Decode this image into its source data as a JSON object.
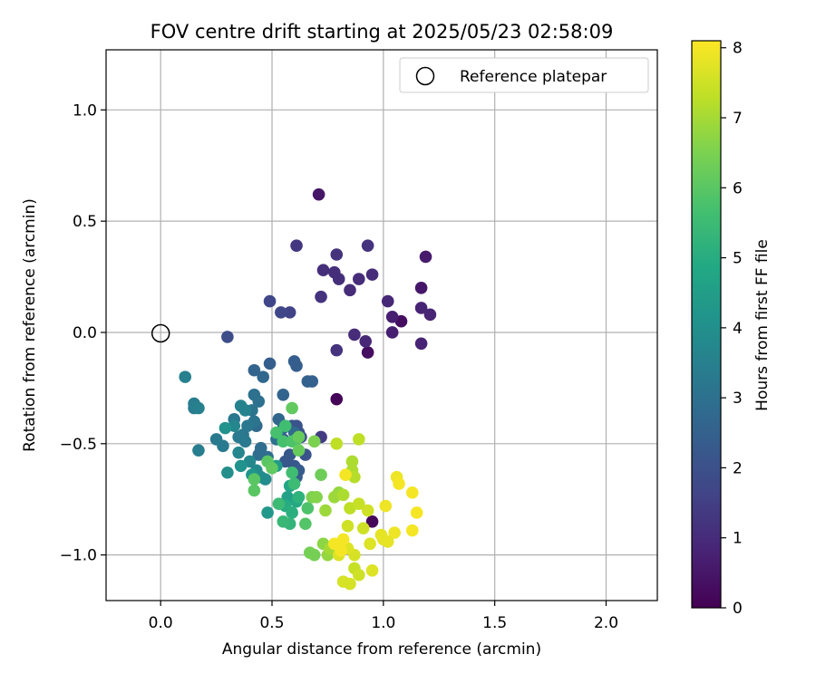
{
  "chart_data": {
    "type": "scatter",
    "title": "FOV centre drift starting at 2025/05/23 02:58:09",
    "xlabel": "Angular distance from reference (arcmin)",
    "ylabel": "Rotation from reference (arcmin)",
    "xlim": [
      -0.245,
      2.23
    ],
    "ylim": [
      -1.205,
      1.27
    ],
    "xticks": [
      0.0,
      0.5,
      1.0,
      1.5,
      2.0
    ],
    "xtick_labels": [
      "0.0",
      "0.5",
      "1.0",
      "1.5",
      "2.0"
    ],
    "yticks": [
      1.0,
      0.5,
      0.0,
      -0.5,
      -1.0
    ],
    "ytick_labels": [
      "1.0",
      "0.5",
      "0.0",
      "−0.5",
      "−1.0"
    ],
    "grid": true,
    "legend": {
      "position": "top-right",
      "entries": [
        "Reference platepar"
      ]
    },
    "reference_point": {
      "x": 0.0,
      "y": 0.0,
      "label": "Reference platepar"
    },
    "colorbar": {
      "label": "Hours from first FF file",
      "colormap": "viridis",
      "range": [
        0,
        8.1
      ],
      "ticks": [
        0,
        1,
        2,
        3,
        4,
        5,
        6,
        7,
        8
      ],
      "tick_labels": [
        "0",
        "1",
        "2",
        "3",
        "4",
        "5",
        "6",
        "7",
        "8"
      ]
    },
    "points": [
      [
        0.79,
        -0.3,
        0.1
      ],
      [
        0.95,
        -0.85,
        0.15
      ],
      [
        0.93,
        -0.09,
        0.3
      ],
      [
        1.08,
        0.05,
        0.3
      ],
      [
        0.71,
        0.62,
        0.5
      ],
      [
        1.17,
        0.2,
        0.5
      ],
      [
        1.19,
        0.34,
        0.6
      ],
      [
        1.04,
        0.07,
        0.7
      ],
      [
        1.04,
        0.0,
        0.7
      ],
      [
        1.21,
        0.08,
        0.8
      ],
      [
        1.17,
        0.11,
        0.8
      ],
      [
        1.17,
        -0.05,
        0.8
      ],
      [
        1.02,
        0.14,
        0.9
      ],
      [
        0.92,
        -0.04,
        0.9
      ],
      [
        0.87,
        -0.01,
        1.0
      ],
      [
        0.85,
        0.19,
        1.0
      ],
      [
        0.95,
        0.26,
        1.0
      ],
      [
        0.89,
        0.24,
        1.0
      ],
      [
        0.78,
        0.27,
        1.1
      ],
      [
        0.8,
        0.24,
        1.1
      ],
      [
        0.73,
        0.28,
        1.1
      ],
      [
        0.72,
        0.16,
        1.2
      ],
      [
        0.79,
        -0.08,
        1.2
      ],
      [
        0.93,
        0.39,
        1.2
      ],
      [
        0.79,
        0.35,
        1.2
      ],
      [
        0.61,
        0.39,
        1.3
      ],
      [
        0.72,
        -0.47,
        1.4
      ],
      [
        0.58,
        0.09,
        1.6
      ],
      [
        0.54,
        0.09,
        1.7
      ],
      [
        0.49,
        0.14,
        1.7
      ],
      [
        0.3,
        -0.02,
        1.9
      ],
      [
        0.63,
        -0.47,
        2.0
      ],
      [
        0.62,
        -0.45,
        2.1
      ],
      [
        0.61,
        -0.42,
        2.1
      ],
      [
        0.59,
        -0.42,
        2.1
      ],
      [
        0.65,
        -0.55,
        2.1
      ],
      [
        0.56,
        -0.58,
        2.2
      ],
      [
        0.6,
        -0.6,
        2.2
      ],
      [
        0.58,
        -0.55,
        2.2
      ],
      [
        0.55,
        -0.48,
        2.3
      ],
      [
        0.62,
        -0.62,
        2.3
      ],
      [
        0.61,
        -0.65,
        2.3
      ],
      [
        0.49,
        -0.14,
        2.4
      ],
      [
        0.6,
        -0.13,
        2.4
      ],
      [
        0.61,
        -0.15,
        2.4
      ],
      [
        0.66,
        -0.22,
        2.5
      ],
      [
        0.68,
        -0.22,
        2.5
      ],
      [
        0.55,
        -0.28,
        2.6
      ],
      [
        0.42,
        -0.17,
        2.6
      ],
      [
        0.46,
        -0.2,
        2.7
      ],
      [
        0.53,
        -0.39,
        2.7
      ],
      [
        0.55,
        -0.43,
        2.8
      ],
      [
        0.6,
        -0.45,
        2.8
      ],
      [
        0.43,
        -0.42,
        2.8
      ],
      [
        0.45,
        -0.52,
        2.9
      ],
      [
        0.44,
        -0.55,
        2.9
      ],
      [
        0.48,
        -0.56,
        2.9
      ],
      [
        0.52,
        -0.48,
        3.0
      ],
      [
        0.42,
        -0.28,
        3.0
      ],
      [
        0.44,
        -0.31,
        3.0
      ],
      [
        0.41,
        -0.35,
        3.1
      ],
      [
        0.42,
        -0.4,
        3.1
      ],
      [
        0.39,
        -0.42,
        3.2
      ],
      [
        0.37,
        -0.46,
        3.2
      ],
      [
        0.33,
        -0.39,
        3.2
      ],
      [
        0.28,
        -0.51,
        3.3
      ],
      [
        0.25,
        -0.48,
        3.3
      ],
      [
        0.35,
        -0.47,
        3.3
      ],
      [
        0.38,
        -0.49,
        3.3
      ],
      [
        0.17,
        -0.53,
        3.4
      ],
      [
        0.15,
        -0.34,
        3.4
      ],
      [
        0.15,
        -0.32,
        3.4
      ],
      [
        0.17,
        -0.34,
        3.5
      ],
      [
        0.11,
        -0.2,
        3.5
      ],
      [
        0.36,
        -0.33,
        3.6
      ],
      [
        0.38,
        -0.35,
        3.6
      ],
      [
        0.33,
        -0.42,
        3.7
      ],
      [
        0.35,
        -0.54,
        3.7
      ],
      [
        0.4,
        -0.58,
        3.8
      ],
      [
        0.43,
        -0.62,
        3.8
      ],
      [
        0.45,
        -0.65,
        3.9
      ],
      [
        0.47,
        -0.66,
        3.9
      ],
      [
        0.3,
        -0.63,
        4.0
      ],
      [
        0.29,
        -0.43,
        4.1
      ],
      [
        0.36,
        -0.6,
        4.1
      ],
      [
        0.41,
        -0.64,
        4.2
      ],
      [
        0.48,
        -0.81,
        4.3
      ],
      [
        0.52,
        -0.6,
        4.4
      ],
      [
        0.57,
        -0.74,
        4.6
      ],
      [
        0.58,
        -0.69,
        4.8
      ],
      [
        0.61,
        -0.76,
        4.9
      ],
      [
        0.56,
        -0.78,
        5.0
      ],
      [
        0.59,
        -0.81,
        5.1
      ],
      [
        0.62,
        -0.74,
        5.2
      ],
      [
        0.58,
        -0.86,
        5.3
      ],
      [
        0.55,
        -0.85,
        5.4
      ],
      [
        0.53,
        -0.77,
        5.5
      ],
      [
        0.6,
        -0.68,
        5.5
      ],
      [
        0.59,
        -0.63,
        5.6
      ],
      [
        0.56,
        -0.42,
        5.6
      ],
      [
        0.52,
        -0.45,
        5.7
      ],
      [
        0.55,
        -0.49,
        5.7
      ],
      [
        0.61,
        -0.48,
        5.8
      ],
      [
        0.59,
        -0.49,
        5.8
      ],
      [
        0.66,
        -0.79,
        5.8
      ],
      [
        0.65,
        -0.86,
        5.9
      ],
      [
        0.42,
        -0.66,
        6.0
      ],
      [
        0.42,
        -0.71,
        6.0
      ],
      [
        0.48,
        -0.58,
        6.0
      ],
      [
        0.5,
        -0.61,
        6.1
      ],
      [
        0.59,
        -0.34,
        6.1
      ],
      [
        0.62,
        -0.47,
        6.2
      ],
      [
        0.62,
        -0.53,
        6.2
      ],
      [
        0.72,
        -0.64,
        6.3
      ],
      [
        0.67,
        -0.99,
        6.4
      ],
      [
        0.69,
        -1.0,
        6.4
      ],
      [
        0.69,
        -0.49,
        6.5
      ],
      [
        0.68,
        -0.74,
        6.5
      ],
      [
        0.7,
        -0.74,
        6.6
      ],
      [
        0.73,
        -0.95,
        6.7
      ],
      [
        0.75,
        -1.0,
        6.8
      ],
      [
        0.8,
        -0.72,
        6.8
      ],
      [
        0.78,
        -0.74,
        6.9
      ],
      [
        0.74,
        -0.8,
        6.9
      ],
      [
        0.76,
        -0.97,
        7.0
      ],
      [
        0.82,
        -0.73,
        7.1
      ],
      [
        0.86,
        -0.58,
        7.1
      ],
      [
        0.86,
        -0.62,
        7.1
      ],
      [
        0.87,
        -0.65,
        7.2
      ],
      [
        0.89,
        -0.48,
        7.3
      ],
      [
        0.85,
        -0.79,
        7.3
      ],
      [
        0.79,
        -0.5,
        7.3
      ],
      [
        0.89,
        -0.77,
        7.4
      ],
      [
        0.87,
        -1.06,
        7.4
      ],
      [
        0.89,
        -1.09,
        7.5
      ],
      [
        0.91,
        -0.88,
        7.5
      ],
      [
        0.93,
        -0.8,
        7.5
      ],
      [
        0.84,
        -0.87,
        7.5
      ],
      [
        0.82,
        -1.12,
        7.6
      ],
      [
        0.85,
        -1.13,
        7.6
      ],
      [
        0.87,
        -1.0,
        7.6
      ],
      [
        0.84,
        -0.97,
        7.7
      ],
      [
        0.8,
        -1.0,
        7.7
      ],
      [
        0.95,
        -1.07,
        7.7
      ],
      [
        0.94,
        -0.95,
        7.7
      ],
      [
        0.99,
        -0.91,
        7.8
      ],
      [
        1.0,
        -0.93,
        7.8
      ],
      [
        1.02,
        -0.94,
        7.8
      ],
      [
        1.01,
        -0.78,
        7.9
      ],
      [
        1.05,
        -0.9,
        7.9
      ],
      [
        1.06,
        -0.65,
        7.9
      ],
      [
        1.07,
        -0.68,
        8.0
      ],
      [
        1.13,
        -0.72,
        8.0
      ],
      [
        1.13,
        -0.89,
        8.0
      ],
      [
        1.15,
        -0.81,
        8.0
      ],
      [
        0.83,
        -0.64,
        8.0
      ],
      [
        0.82,
        -0.93,
        8.0
      ],
      [
        0.81,
        -0.98,
        8.0
      ],
      [
        0.78,
        -0.95,
        8.0
      ]
    ]
  }
}
